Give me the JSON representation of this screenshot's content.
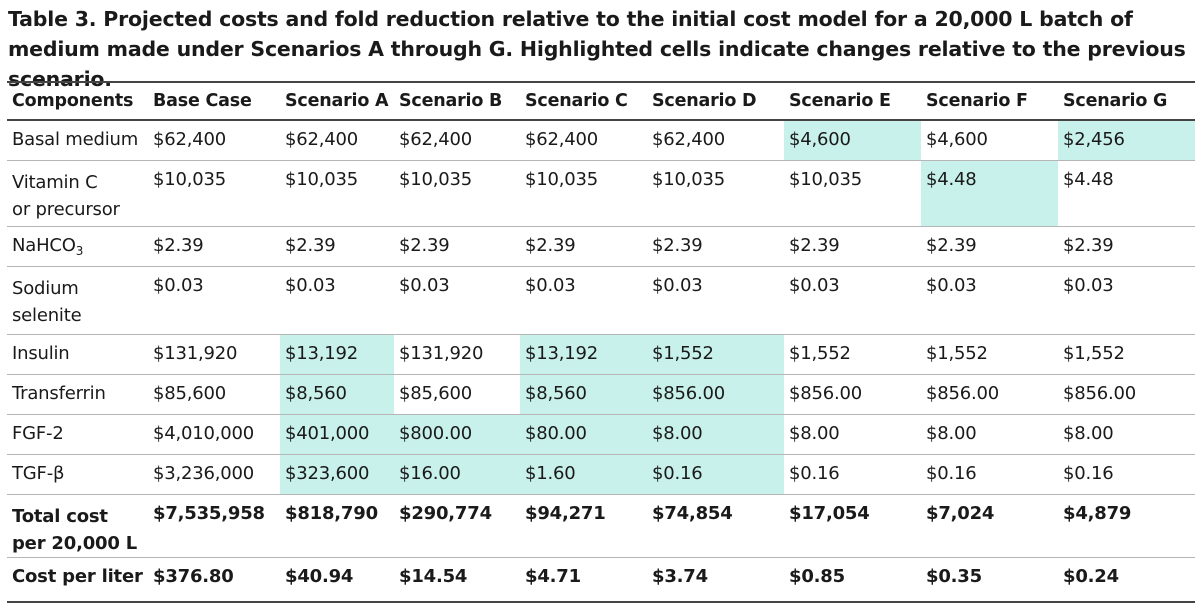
{
  "caption": "Table 3. Projected costs and fold reduction relative to the initial cost model for a 20,000 L batch of medium made under Scenarios A through G. Highlighted cells indicate changes relative to the previous scenario.",
  "headers": [
    "Components",
    "Base Case",
    "Scenario A",
    "Scenario B",
    "Scenario C",
    "Scenario D",
    "Scenario E",
    "Scenario F",
    "Scenario G"
  ],
  "rows": [
    {
      "label": [
        "Basal medium"
      ],
      "cells": [
        "$62,400",
        "$62,400",
        "$62,400",
        "$62,400",
        "$62,400",
        "$4,600",
        "$4,600",
        "$2,456"
      ],
      "highlight": [
        false,
        false,
        false,
        false,
        false,
        true,
        false,
        true
      ]
    },
    {
      "label": [
        "Vitamin C",
        "or precursor"
      ],
      "cells": [
        "$10,035",
        "$10,035",
        "$10,035",
        "$10,035",
        "$10,035",
        "$10,035",
        "$4.48",
        "$4.48"
      ],
      "highlight": [
        false,
        false,
        false,
        false,
        false,
        false,
        true,
        false
      ]
    },
    {
      "label": [
        "NaHCO",
        "3"
      ],
      "cells": [
        "$2.39",
        "$2.39",
        "$2.39",
        "$2.39",
        "$2.39",
        "$2.39",
        "$2.39",
        "$2.39"
      ],
      "highlight": [
        false,
        false,
        false,
        false,
        false,
        false,
        false,
        false
      ]
    },
    {
      "label": [
        "Sodium",
        "selenite"
      ],
      "cells": [
        "$0.03",
        "$0.03",
        "$0.03",
        "$0.03",
        "$0.03",
        "$0.03",
        "$0.03",
        "$0.03"
      ],
      "highlight": [
        false,
        false,
        false,
        false,
        false,
        false,
        false,
        false
      ]
    },
    {
      "label": [
        "Insulin"
      ],
      "cells": [
        "$131,920",
        "$13,192",
        "$131,920",
        "$13,192",
        "$1,552",
        "$1,552",
        "$1,552",
        "$1,552"
      ],
      "highlight": [
        false,
        true,
        false,
        true,
        true,
        false,
        false,
        false
      ]
    },
    {
      "label": [
        "Transferrin"
      ],
      "cells": [
        "$85,600",
        "$8,560",
        "$85,600",
        "$8,560",
        "$856.00",
        "$856.00",
        "$856.00",
        "$856.00"
      ],
      "highlight": [
        false,
        true,
        false,
        true,
        true,
        false,
        false,
        false
      ]
    },
    {
      "label": [
        "FGF-2"
      ],
      "cells": [
        "$4,010,000",
        "$401,000",
        "$800.00",
        "$80.00",
        "$8.00",
        "$8.00",
        "$8.00",
        "$8.00"
      ],
      "highlight": [
        false,
        true,
        true,
        true,
        true,
        false,
        false,
        false
      ]
    },
    {
      "label": [
        "TGF-β"
      ],
      "cells": [
        "$3,236,000",
        "$323,600",
        "$16.00",
        "$1.60",
        "$0.16",
        "$0.16",
        "$0.16",
        "$0.16"
      ],
      "highlight": [
        false,
        true,
        true,
        true,
        true,
        false,
        false,
        false
      ]
    },
    {
      "label": [
        "Total cost",
        "per 20,000 L"
      ],
      "cells": [
        "$7,535,958",
        "$818,790",
        "$290,774",
        "$94,271",
        "$74,854",
        "$17,054",
        "$7,024",
        "$4,879"
      ],
      "highlight": [
        false,
        false,
        false,
        false,
        false,
        false,
        false,
        false
      ]
    },
    {
      "label": [
        "Cost per liter"
      ],
      "cells": [
        "$376.80",
        "$40.94",
        "$14.54",
        "$4.71",
        "$3.74",
        "$0.85",
        "$0.35",
        "$0.24"
      ],
      "highlight": [
        false,
        false,
        false,
        false,
        false,
        false,
        false,
        false
      ]
    }
  ]
}
